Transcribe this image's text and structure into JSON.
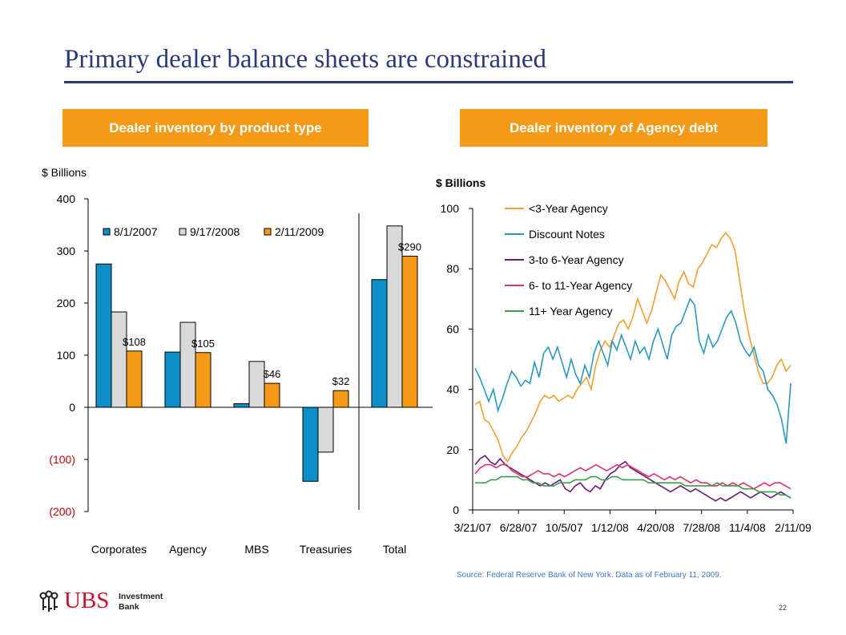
{
  "title": "Primary dealer balance sheets are constrained",
  "left_header": "Dealer inventory by product type",
  "right_header": "Dealer inventory of Agency debt",
  "source": "Source: Federal Reserve Bank of New York.  Data as of February 11, 2009.",
  "page_number": "22",
  "logo": {
    "name": "UBS",
    "line1": "Investment",
    "line2": "Bank",
    "icon": "ubs-keys-icon"
  },
  "colors": {
    "title": "#2b3a7c",
    "header_bg": "#f59a17",
    "series1": "#0b8fc6",
    "series2": "#d9d9d9",
    "series3": "#f59a17",
    "agency_lt3": "#f0a030",
    "discount": "#2a97c1",
    "agency_3to6": "#6a1b7a",
    "agency_6to11": "#e0306f",
    "agency_11plus": "#3a9e48",
    "negative_tick": "#c00000"
  },
  "chart_data": [
    {
      "type": "bar",
      "ylabel": "$ Billions",
      "ylim": [
        -200,
        400
      ],
      "yticks": [
        "400",
        "300",
        "200",
        "100",
        "0",
        "(100)",
        "(200)"
      ],
      "ytick_values": [
        400,
        300,
        200,
        100,
        0,
        -100,
        -200
      ],
      "categories": [
        "Corporates",
        "Agency",
        "MBS",
        "Treasuries",
        "Total"
      ],
      "series": [
        {
          "name": "8/1/2007",
          "values": [
            275,
            106,
            7,
            -142,
            245
          ]
        },
        {
          "name": "9/17/2008",
          "values": [
            183,
            163,
            88,
            -86,
            348
          ]
        },
        {
          "name": "2/11/2009",
          "values": [
            108,
            105,
            46,
            32,
            290
          ]
        }
      ],
      "data_labels": [
        "$108",
        "$105",
        "$46",
        "$32",
        "$290"
      ],
      "legend": "top"
    },
    {
      "type": "line",
      "ylabel": "$ Billions",
      "ylim": [
        0,
        100
      ],
      "yticks": [
        "100",
        "80",
        "60",
        "40",
        "20",
        "0"
      ],
      "ytick_values": [
        100,
        80,
        60,
        40,
        20,
        0
      ],
      "xticks": [
        "3/21/07",
        "6/28/07",
        "10/5/07",
        "1/12/08",
        "4/20/08",
        "7/28/08",
        "11/4/08",
        "2/11/09"
      ],
      "legend": "top-left",
      "series": [
        {
          "name": "<3-Year Agency",
          "values": [
            35,
            36,
            30,
            29,
            26,
            23,
            18,
            16,
            19,
            21,
            24,
            26,
            29,
            32,
            36,
            38,
            37,
            38,
            36,
            37,
            38,
            37,
            40,
            42,
            44,
            40,
            48,
            53,
            56,
            54,
            58,
            62,
            63,
            60,
            64,
            70,
            66,
            62,
            66,
            72,
            78,
            76,
            73,
            70,
            76,
            79,
            75,
            74,
            80,
            82,
            85,
            88,
            87,
            90,
            92,
            90,
            86,
            76,
            66,
            58,
            52,
            46,
            42,
            42,
            44,
            48,
            50,
            46,
            48
          ]
        },
        {
          "name": "Discount Notes",
          "values": [
            47,
            44,
            40,
            36,
            40,
            33,
            37,
            42,
            46,
            44,
            41,
            43,
            42,
            49,
            44,
            52,
            54,
            50,
            54,
            49,
            44,
            50,
            45,
            42,
            48,
            44,
            52,
            56,
            52,
            48,
            56,
            53,
            58,
            54,
            50,
            56,
            52,
            54,
            50,
            56,
            60,
            55,
            50,
            58,
            61,
            62,
            66,
            70,
            68,
            56,
            52,
            58,
            54,
            56,
            60,
            64,
            66,
            62,
            56,
            53,
            51,
            54,
            48,
            46,
            40,
            38,
            35,
            30,
            22,
            42
          ]
        },
        {
          "name": "3-to 6-Year Agency",
          "values": [
            15,
            17,
            18,
            16,
            15,
            17,
            15,
            14,
            13,
            12,
            11,
            10,
            9,
            8,
            9,
            8,
            9,
            10,
            7,
            6,
            8,
            9,
            7,
            6,
            8,
            7,
            10,
            12,
            13,
            15,
            16,
            14,
            13,
            12,
            11,
            10,
            9,
            8,
            7,
            6,
            7,
            8,
            7,
            6,
            7,
            6,
            5,
            4,
            3,
            4,
            3,
            4,
            5,
            6,
            5,
            4,
            5,
            6,
            5,
            4,
            5,
            6,
            5,
            4
          ]
        },
        {
          "name": "6- to 11-Year Agency",
          "values": [
            12,
            14,
            15,
            15,
            14,
            15,
            15,
            13,
            12,
            11,
            11,
            12,
            13,
            12,
            12,
            11,
            12,
            11,
            12,
            13,
            14,
            13,
            14,
            15,
            14,
            13,
            14,
            15,
            14,
            15,
            14,
            13,
            12,
            11,
            12,
            11,
            10,
            11,
            10,
            11,
            10,
            9,
            10,
            9,
            9,
            8,
            8,
            9,
            8,
            9,
            8,
            9,
            8,
            7,
            8,
            9,
            8,
            9,
            9,
            8,
            7
          ]
        },
        {
          "name": "11+ Year Agency",
          "values": [
            9,
            9,
            9,
            10,
            10,
            11,
            11,
            11,
            11,
            10,
            10,
            9,
            9,
            8,
            8,
            8,
            9,
            9,
            9,
            10,
            10,
            10,
            11,
            11,
            10,
            10,
            11,
            11,
            10,
            10,
            10,
            10,
            10,
            9,
            9,
            9,
            9,
            9,
            9,
            9,
            8,
            8,
            8,
            8,
            8,
            8,
            9,
            8,
            8,
            8,
            8,
            7,
            7,
            7,
            6,
            6,
            6,
            6,
            5,
            5,
            4
          ]
        }
      ]
    }
  ]
}
